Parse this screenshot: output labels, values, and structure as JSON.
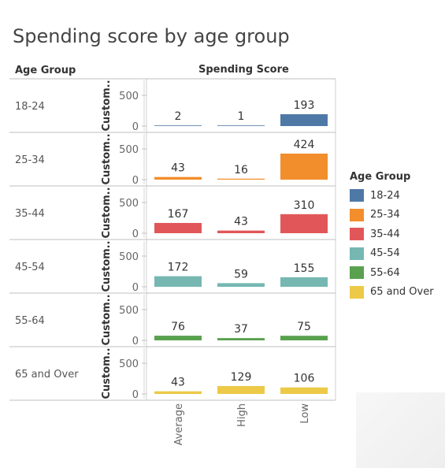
{
  "chart_data": {
    "type": "bar",
    "title": "Spending score by age group",
    "row_header": "Age Group",
    "column_header": "Spending Score",
    "y_axis_label": "Custom..",
    "y_ticks": [
      0,
      500
    ],
    "ylim": [
      0,
      600
    ],
    "categories": [
      "Average",
      "High",
      "Low"
    ],
    "series": [
      {
        "name": "18-24",
        "color": "#4e79a7",
        "values": [
          2,
          1,
          193
        ]
      },
      {
        "name": "25-34",
        "color": "#f28e2b",
        "values": [
          43,
          16,
          424
        ]
      },
      {
        "name": "35-44",
        "color": "#e15759",
        "values": [
          167,
          43,
          310
        ]
      },
      {
        "name": "45-54",
        "color": "#76b7b2",
        "values": [
          172,
          59,
          155
        ]
      },
      {
        "name": "55-64",
        "color": "#59a14f",
        "values": [
          76,
          37,
          75
        ]
      },
      {
        "name": "65 and Over",
        "color": "#edc948",
        "values": [
          43,
          129,
          106
        ]
      }
    ],
    "legend": {
      "title": "Age Group",
      "position": "right"
    }
  }
}
